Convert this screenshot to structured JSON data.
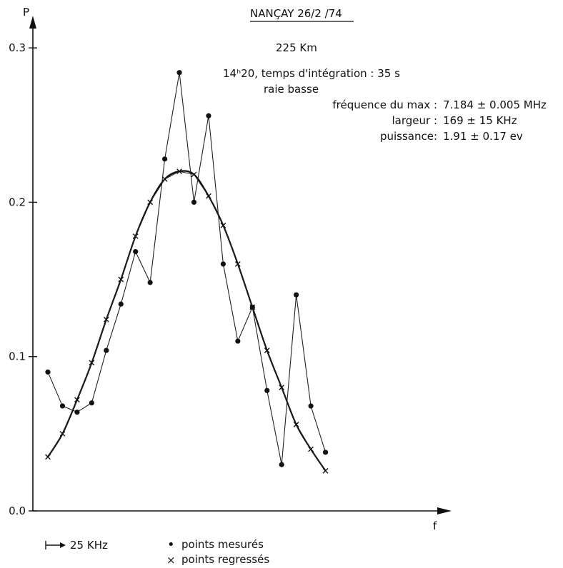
{
  "chart_data": {
    "type": "line",
    "yaxis_label": "P",
    "xaxis_label": "f",
    "title": "NANÇAY  26/2 /74",
    "altitude": "225 Km",
    "time_info": "14ʰ20, temps d'intégration : 35 s",
    "line_name": "raie  basse",
    "params": [
      {
        "label": "fréquence du max :",
        "value": "7.184 ± 0.005 MHz"
      },
      {
        "label": "largeur    :",
        "value": "169 ± 15 KHz"
      },
      {
        "label": "puissance:",
        "value": "1.91 ± 0.17 ev"
      }
    ],
    "y_ticks": [
      "0.0",
      "0.1",
      "0.2",
      "0.3"
    ],
    "ylim": [
      0,
      0.32
    ],
    "x": [
      0,
      1,
      2,
      3,
      4,
      5,
      6,
      7,
      8,
      9,
      10,
      11,
      12,
      13,
      14,
      15,
      16,
      17,
      18,
      19
    ],
    "series": [
      {
        "name": "points mesurés",
        "marker": "dot",
        "values": [
          0.09,
          0.068,
          0.064,
          0.07,
          0.104,
          0.134,
          0.168,
          0.148,
          0.228,
          0.284,
          0.2,
          0.256,
          0.16,
          0.11,
          0.132,
          0.078,
          0.03,
          0.14,
          0.068,
          0.038
        ]
      },
      {
        "name": "points regressés",
        "marker": "cross",
        "values": [
          0.035,
          0.05,
          0.072,
          0.096,
          0.124,
          0.15,
          0.178,
          0.2,
          0.215,
          0.22,
          0.218,
          0.204,
          0.185,
          0.16,
          0.132,
          0.104,
          0.08,
          0.056,
          0.04,
          0.026
        ]
      }
    ],
    "scale_label": "25 KHz",
    "legend": [
      {
        "symbol": "•",
        "label": "points mesurés"
      },
      {
        "symbol": "×",
        "label": "points regressés"
      }
    ],
    "legend_position": "bottom-left",
    "grid": false
  }
}
